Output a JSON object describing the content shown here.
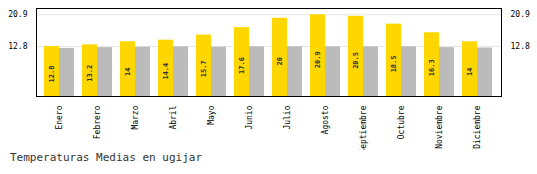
{
  "chart_data": {
    "type": "bar",
    "title": "Temperaturas Medias en ugijar",
    "categories": [
      "Enero",
      "Febrero",
      "Marzo",
      "Abril",
      "Mayo",
      "Junio",
      "Julio",
      "Agosto",
      "Septiembre",
      "Octubre",
      "Noviembre",
      "Diciembre"
    ],
    "series": [
      {
        "color": "#FFD700",
        "values": [
          12.8,
          13.2,
          14.0,
          14.4,
          15.7,
          17.6,
          20.0,
          20.9,
          20.5,
          18.5,
          16.3,
          14.0
        ],
        "data_labels": true
      },
      {
        "color": "#BBBBBB",
        "values": [
          12.3,
          12.5,
          12.6,
          12.7,
          12.6,
          12.7,
          12.7,
          12.7,
          12.7,
          12.7,
          12.5,
          12.4
        ]
      }
    ],
    "ylim": [
      0,
      22.5
    ],
    "yticks": [
      12.8,
      20.9
    ],
    "grid": true
  }
}
